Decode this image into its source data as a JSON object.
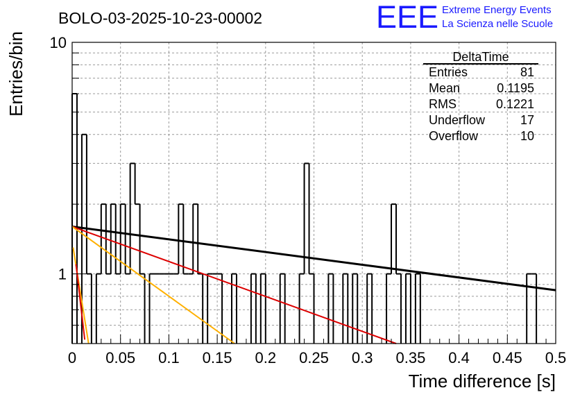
{
  "chart_data": {
    "type": "histogram",
    "title": "BOLO-03-2025-10-23-00002",
    "xlabel": "Time difference [s]",
    "ylabel": "Entries/bin",
    "xlim": [
      0,
      0.5
    ],
    "ylim": [
      0.5,
      10
    ],
    "yscale": "log",
    "grid": true,
    "bin_width": 0.005,
    "x_ticks": [
      "0",
      "0.05",
      "0.1",
      "0.15",
      "0.2",
      "0.25",
      "0.3",
      "0.35",
      "0.4",
      "0.45",
      "0.5"
    ],
    "y_ticks": [
      "1",
      "10"
    ],
    "bins": [
      [
        0.0,
        6
      ],
      [
        0.005,
        0
      ],
      [
        0.01,
        4
      ],
      [
        0.015,
        1
      ],
      [
        0.02,
        0
      ],
      [
        0.025,
        1
      ],
      [
        0.03,
        2
      ],
      [
        0.035,
        1
      ],
      [
        0.04,
        2
      ],
      [
        0.045,
        1
      ],
      [
        0.05,
        2
      ],
      [
        0.055,
        1
      ],
      [
        0.06,
        3
      ],
      [
        0.065,
        2
      ],
      [
        0.07,
        1
      ],
      [
        0.08,
        1
      ],
      [
        0.085,
        1
      ],
      [
        0.09,
        1
      ],
      [
        0.095,
        1
      ],
      [
        0.1,
        1
      ],
      [
        0.105,
        1
      ],
      [
        0.11,
        2
      ],
      [
        0.115,
        1
      ],
      [
        0.12,
        1
      ],
      [
        0.125,
        2
      ],
      [
        0.13,
        1
      ],
      [
        0.14,
        1
      ],
      [
        0.145,
        1
      ],
      [
        0.15,
        1
      ],
      [
        0.165,
        1
      ],
      [
        0.185,
        1
      ],
      [
        0.195,
        1
      ],
      [
        0.215,
        1
      ],
      [
        0.235,
        1
      ],
      [
        0.24,
        3
      ],
      [
        0.245,
        1
      ],
      [
        0.265,
        1
      ],
      [
        0.28,
        1
      ],
      [
        0.29,
        1
      ],
      [
        0.305,
        1
      ],
      [
        0.325,
        1
      ],
      [
        0.33,
        2
      ],
      [
        0.335,
        1
      ],
      [
        0.345,
        1
      ],
      [
        0.355,
        1
      ],
      [
        0.47,
        1
      ],
      [
        0.475,
        1
      ]
    ],
    "fits": [
      {
        "name": "fit-black",
        "color": "#000000",
        "x0": 0.0,
        "y0": 1.6,
        "x1": 0.5,
        "y1": 0.85
      },
      {
        "name": "fit-red",
        "color": "#dd0000",
        "x0": 0.0,
        "y0": 1.6,
        "x1": 0.335,
        "y1": 0.5
      },
      {
        "name": "fit-orange",
        "color": "#ffb000",
        "x0": 0.0,
        "y0": 1.6,
        "x1": 0.168,
        "y1": 0.5
      },
      {
        "name": "fit-orange-steep",
        "color": "#ffb000",
        "x0": 0.001,
        "y0": 1.3,
        "x1": 0.017,
        "y1": 0.5
      },
      {
        "name": "fit-red-steep",
        "color": "#dd0000",
        "x0": 0.004,
        "y0": 1.1,
        "x1": 0.013,
        "y1": 0.52
      }
    ]
  },
  "stats": {
    "name": "DeltaTime",
    "rows": [
      {
        "label": "Entries",
        "value": "81"
      },
      {
        "label": "Mean",
        "value": "0.1195"
      },
      {
        "label": "RMS",
        "value": "0.1221"
      },
      {
        "label": "Underflow",
        "value": "17"
      },
      {
        "label": "Overflow",
        "value": "10"
      }
    ]
  },
  "logo": {
    "mark": "EEE",
    "line1": "Extreme Energy Events",
    "line2": "La Scienza nelle Scuole",
    "color": "#1a1aff"
  }
}
